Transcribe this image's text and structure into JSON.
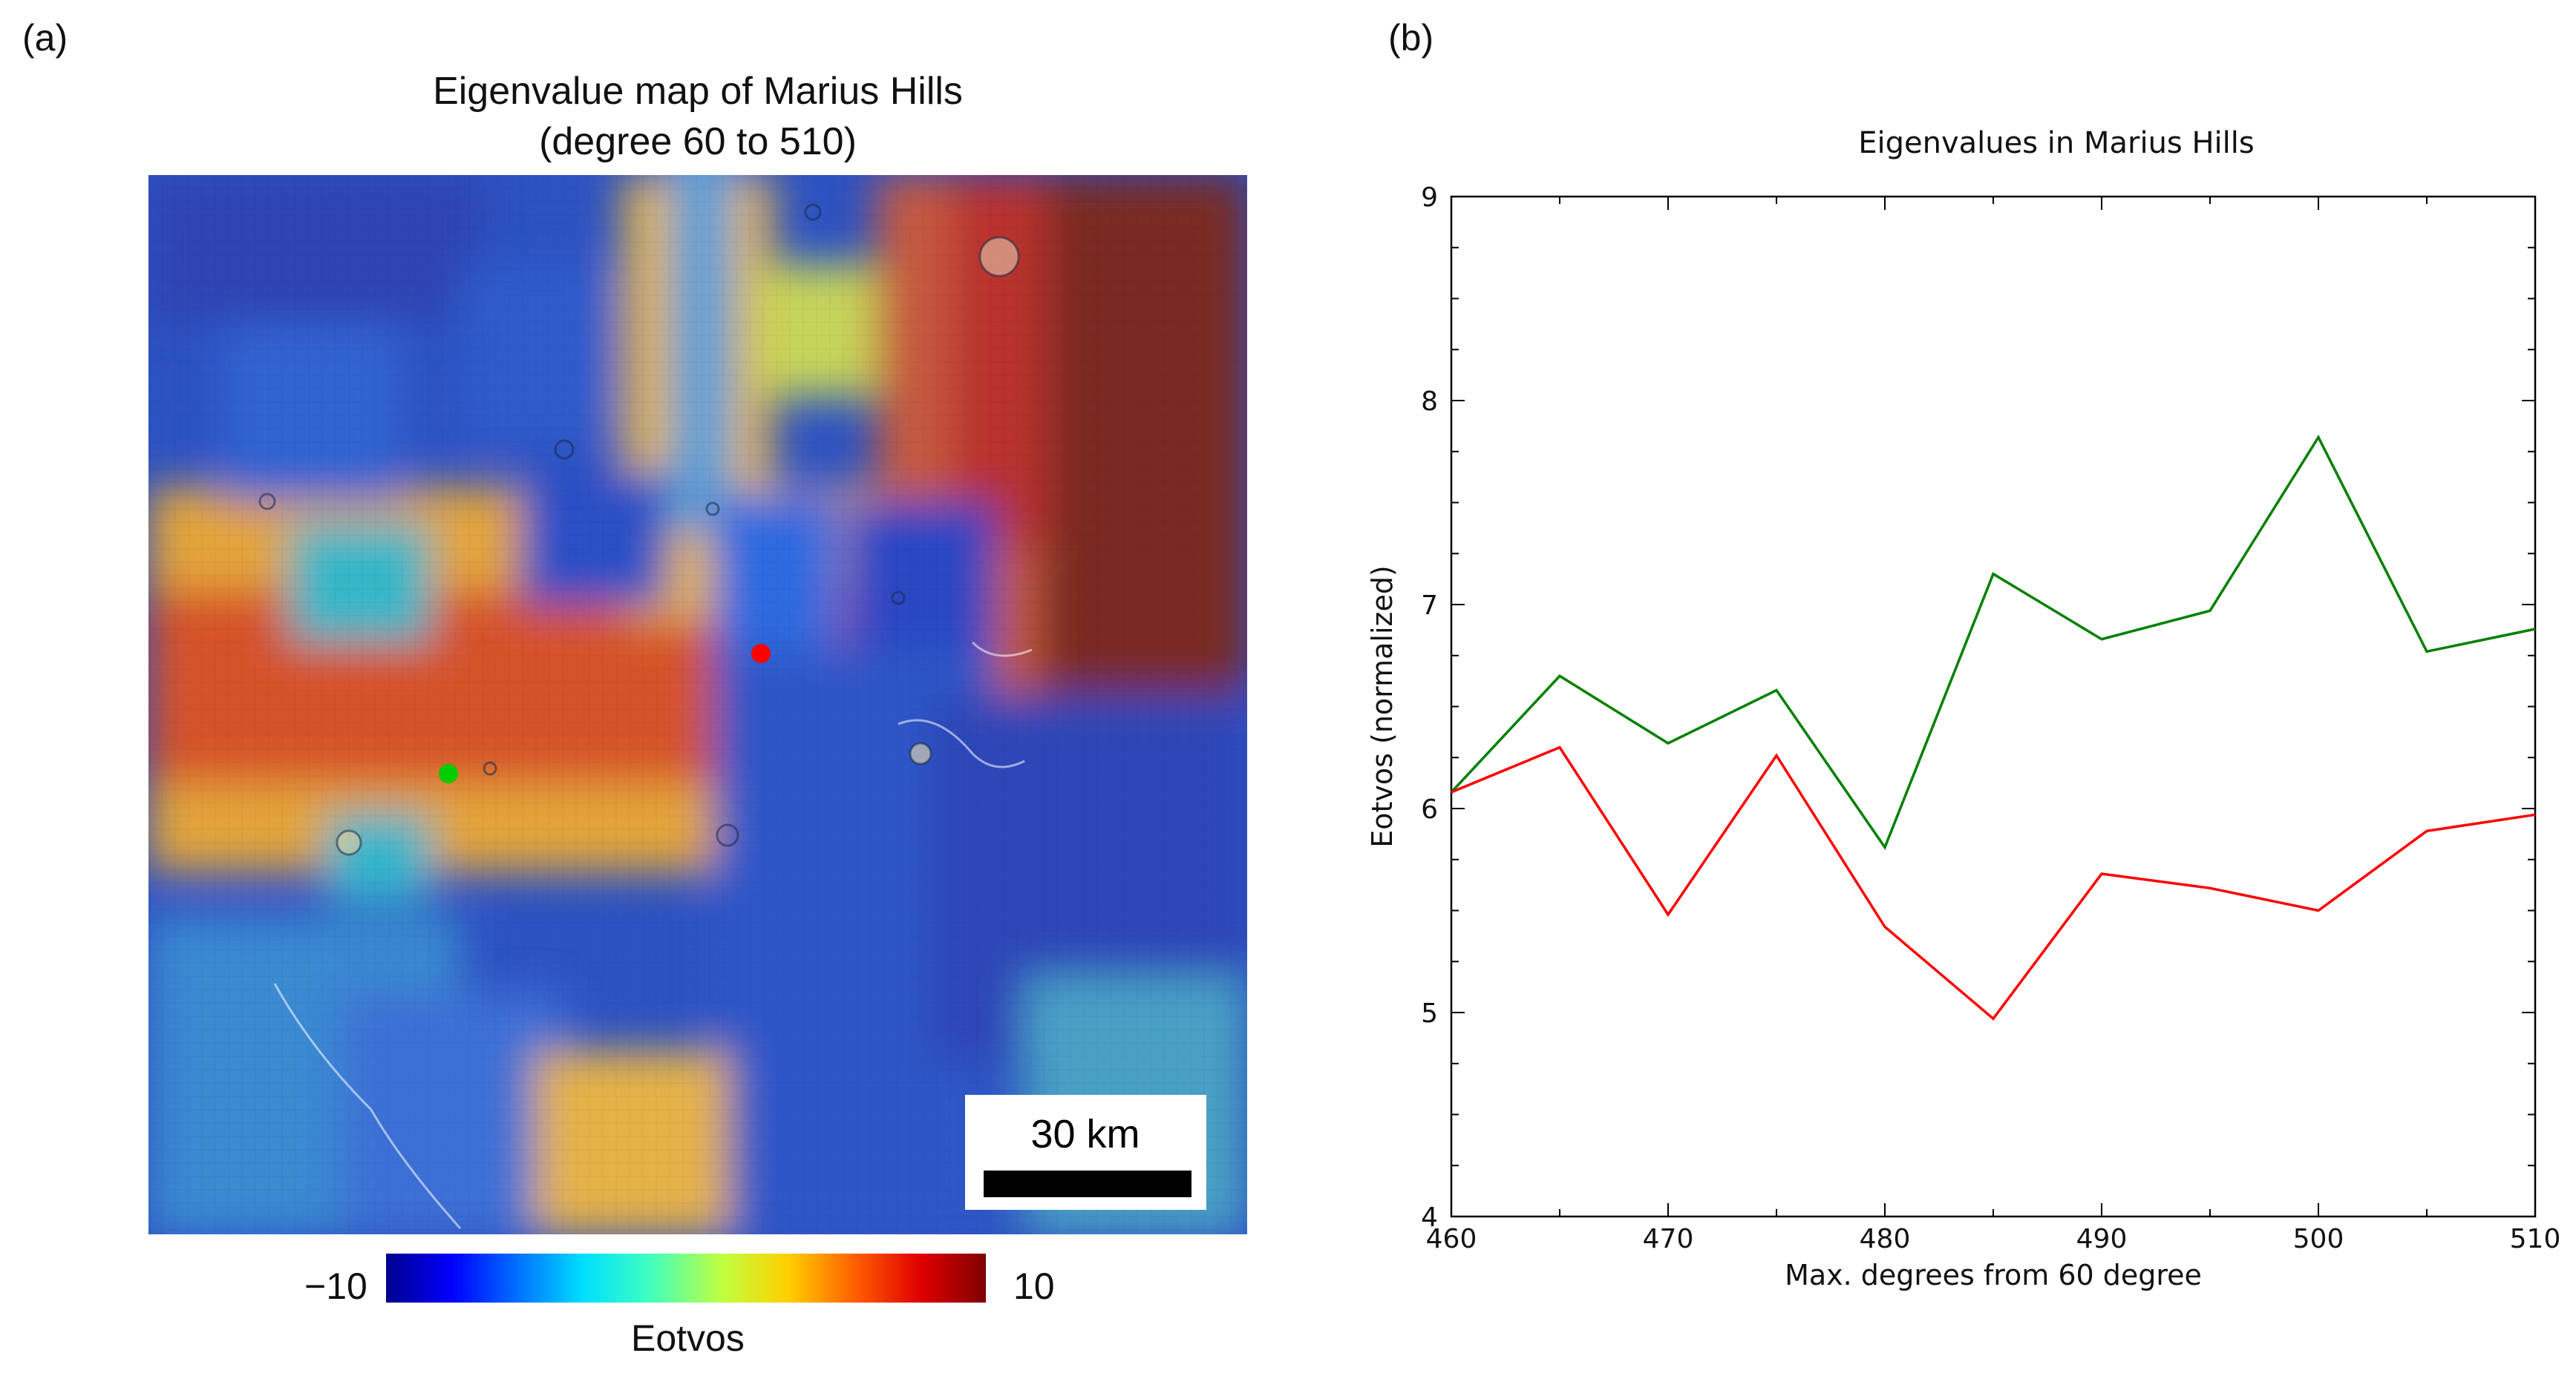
{
  "panel_a": {
    "label": "(a)",
    "title_line1": "Eigenvalue map of Marius Hills",
    "title_line2": "(degree 60 to 510)",
    "scale_bar_label": "30 km",
    "colorbar": {
      "min_label": "−10",
      "max_label": "10",
      "label": "Eotvos",
      "colors": [
        "#00008f",
        "#0000ff",
        "#0070ff",
        "#00e0ff",
        "#40ffbf",
        "#c0ff40",
        "#ffd000",
        "#ff6000",
        "#e00000",
        "#800000"
      ]
    },
    "markers": [
      {
        "name": "red-site-marker",
        "color": "#ff0000"
      },
      {
        "name": "green-site-marker",
        "color": "#00cc00"
      }
    ]
  },
  "panel_b": {
    "label": "(b)",
    "chart_data": {
      "type": "line",
      "title": "Eigenvalues in Marius Hills",
      "xlabel": "Max. degrees from 60 degree",
      "ylabel": "Eotvos (normalized)",
      "xlim": [
        460,
        510
      ],
      "ylim": [
        4,
        9
      ],
      "xticks": [
        460,
        470,
        480,
        490,
        500,
        510
      ],
      "yticks": [
        4,
        5,
        6,
        7,
        8,
        9
      ],
      "x": [
        460,
        465,
        470,
        475,
        480,
        485,
        490,
        495,
        500,
        505,
        510
      ],
      "series": [
        {
          "name": "green",
          "color": "#008000",
          "values": [
            6.08,
            6.65,
            6.32,
            6.58,
            5.81,
            7.15,
            6.83,
            6.97,
            7.82,
            6.77,
            6.88
          ]
        },
        {
          "name": "red",
          "color": "#ff0000",
          "values": [
            6.08,
            6.3,
            5.48,
            6.26,
            5.42,
            4.97,
            5.68,
            5.61,
            5.5,
            5.89,
            5.97
          ]
        }
      ]
    }
  }
}
